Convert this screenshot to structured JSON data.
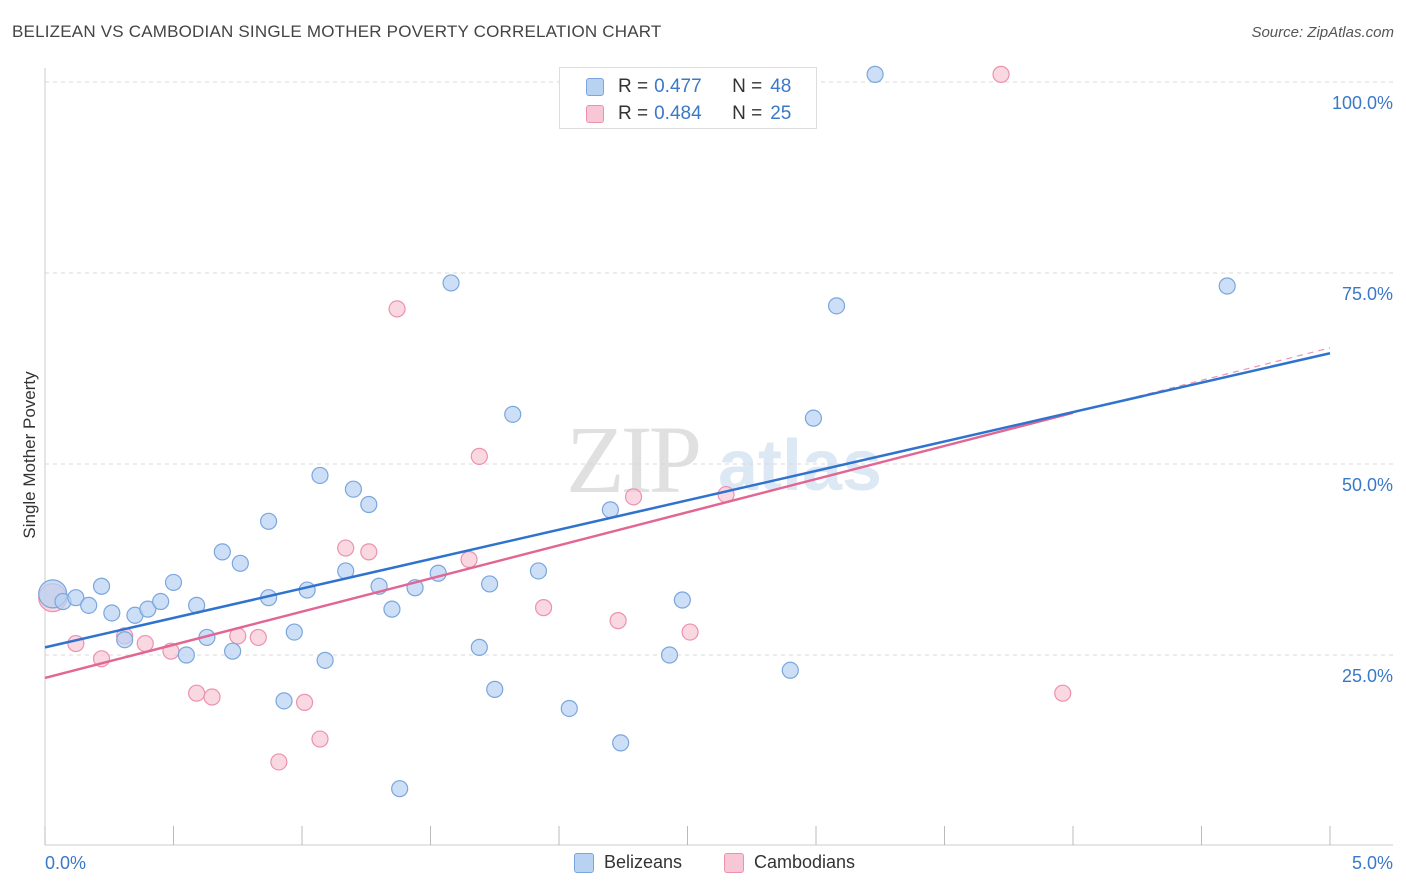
{
  "header": {
    "title": "BELIZEAN VS CAMBODIAN SINGLE MOTHER POVERTY CORRELATION CHART",
    "source": "Source: ZipAtlas.com"
  },
  "legend": {
    "rows": [
      {
        "r_label": "R =",
        "r_value": "0.477",
        "n_label": "N =",
        "n_value": "48"
      },
      {
        "r_label": "R =",
        "r_value": "0.484",
        "n_label": "N =",
        "n_value": "25"
      }
    ]
  },
  "bottom_legend": {
    "belizeans": "Belizeans",
    "cambodians": "Cambodians"
  },
  "axes": {
    "y_title": "Single Mother Poverty",
    "x_min_label": "0.0%",
    "x_max_label": "5.0%"
  },
  "watermark": {
    "zip": "ZIP",
    "atlas": "atlas"
  },
  "colors": {
    "belizean_fill": "#b8d2f2",
    "belizean_stroke": "#7aa6dd",
    "belizean_line": "#2f73cf",
    "cambodian_fill": "#f8c7d6",
    "cambodian_stroke": "#eb92ae",
    "cambodian_line": "#e26694",
    "tick_label": "#3a78c9"
  },
  "chart_data": {
    "type": "scatter",
    "title": "BELIZEAN VS CAMBODIAN SINGLE MOTHER POVERTY CORRELATION CHART",
    "xlabel": "",
    "ylabel": "Single Mother Poverty",
    "xlim": [
      0,
      5
    ],
    "ylim": [
      0,
      105
    ],
    "x_unit": "%",
    "y_ticks": [
      {
        "value": 25,
        "label": "25.0%"
      },
      {
        "value": 50,
        "label": "50.0%"
      },
      {
        "value": 75,
        "label": "75.0%"
      },
      {
        "value": 100,
        "label": "100.0%"
      }
    ],
    "x_tick_values": [
      0,
      0.5,
      1,
      1.5,
      2,
      2.5,
      3,
      3.5,
      4,
      4.5,
      5
    ],
    "grid": "horizontal dashed",
    "legend_position": "top-center",
    "series": [
      {
        "name": "Belizeans",
        "r": 0.477,
        "n": 48,
        "trend": {
          "x": [
            0,
            5
          ],
          "y": [
            26.0,
            64.5
          ]
        },
        "points": [
          {
            "x": 0.03,
            "y": 33.0
          },
          {
            "x": 0.07,
            "y": 32.0
          },
          {
            "x": 0.12,
            "y": 32.5
          },
          {
            "x": 0.17,
            "y": 31.5
          },
          {
            "x": 0.22,
            "y": 34.0
          },
          {
            "x": 0.26,
            "y": 30.5
          },
          {
            "x": 0.31,
            "y": 27.0
          },
          {
            "x": 0.35,
            "y": 30.2
          },
          {
            "x": 0.4,
            "y": 31.0
          },
          {
            "x": 0.45,
            "y": 32.0
          },
          {
            "x": 0.5,
            "y": 34.5
          },
          {
            "x": 0.55,
            "y": 25.0
          },
          {
            "x": 0.59,
            "y": 31.5
          },
          {
            "x": 0.63,
            "y": 27.3
          },
          {
            "x": 0.69,
            "y": 38.5
          },
          {
            "x": 0.73,
            "y": 25.5
          },
          {
            "x": 0.76,
            "y": 37.0
          },
          {
            "x": 0.87,
            "y": 32.5
          },
          {
            "x": 0.87,
            "y": 42.5
          },
          {
            "x": 0.93,
            "y": 19.0
          },
          {
            "x": 0.97,
            "y": 28.0
          },
          {
            "x": 1.02,
            "y": 33.5
          },
          {
            "x": 1.07,
            "y": 48.5
          },
          {
            "x": 1.09,
            "y": 24.3
          },
          {
            "x": 1.17,
            "y": 36.0
          },
          {
            "x": 1.2,
            "y": 46.7
          },
          {
            "x": 1.26,
            "y": 44.7
          },
          {
            "x": 1.3,
            "y": 34.0
          },
          {
            "x": 1.35,
            "y": 31.0
          },
          {
            "x": 1.38,
            "y": 7.5
          },
          {
            "x": 1.44,
            "y": 33.8
          },
          {
            "x": 1.53,
            "y": 35.7
          },
          {
            "x": 1.58,
            "y": 73.7
          },
          {
            "x": 1.69,
            "y": 26.0
          },
          {
            "x": 1.73,
            "y": 34.3
          },
          {
            "x": 1.75,
            "y": 20.5
          },
          {
            "x": 1.82,
            "y": 56.5
          },
          {
            "x": 1.92,
            "y": 36.0
          },
          {
            "x": 2.04,
            "y": 18.0
          },
          {
            "x": 2.2,
            "y": 44.0
          },
          {
            "x": 2.24,
            "y": 13.5
          },
          {
            "x": 2.43,
            "y": 25.0
          },
          {
            "x": 2.48,
            "y": 32.2
          },
          {
            "x": 2.9,
            "y": 23.0
          },
          {
            "x": 2.99,
            "y": 56.0
          },
          {
            "x": 3.08,
            "y": 70.7
          },
          {
            "x": 3.23,
            "y": 101.0
          },
          {
            "x": 4.6,
            "y": 73.3
          }
        ]
      },
      {
        "name": "Cambodians",
        "r": 0.484,
        "n": 25,
        "trend": {
          "x": [
            0,
            4.0
          ],
          "y": [
            22.0,
            56.7
          ]
        },
        "trend_extension": {
          "x": [
            4.0,
            5
          ],
          "y": [
            56.7,
            65.2
          ]
        },
        "points": [
          {
            "x": 0.03,
            "y": 32.5
          },
          {
            "x": 0.12,
            "y": 26.5
          },
          {
            "x": 0.22,
            "y": 24.5
          },
          {
            "x": 0.31,
            "y": 27.5
          },
          {
            "x": 0.39,
            "y": 26.5
          },
          {
            "x": 0.49,
            "y": 25.5
          },
          {
            "x": 0.59,
            "y": 20.0
          },
          {
            "x": 0.65,
            "y": 19.5
          },
          {
            "x": 0.75,
            "y": 27.5
          },
          {
            "x": 0.83,
            "y": 27.3
          },
          {
            "x": 0.91,
            "y": 11.0
          },
          {
            "x": 1.01,
            "y": 18.8
          },
          {
            "x": 1.07,
            "y": 14.0
          },
          {
            "x": 1.17,
            "y": 39.0
          },
          {
            "x": 1.26,
            "y": 38.5
          },
          {
            "x": 1.37,
            "y": 70.3
          },
          {
            "x": 1.65,
            "y": 37.5
          },
          {
            "x": 1.69,
            "y": 51.0
          },
          {
            "x": 1.94,
            "y": 31.2
          },
          {
            "x": 2.23,
            "y": 29.5
          },
          {
            "x": 2.29,
            "y": 45.7
          },
          {
            "x": 2.51,
            "y": 28.0
          },
          {
            "x": 2.65,
            "y": 46.0
          },
          {
            "x": 3.72,
            "y": 101.0
          },
          {
            "x": 3.96,
            "y": 20.0
          }
        ]
      }
    ]
  }
}
